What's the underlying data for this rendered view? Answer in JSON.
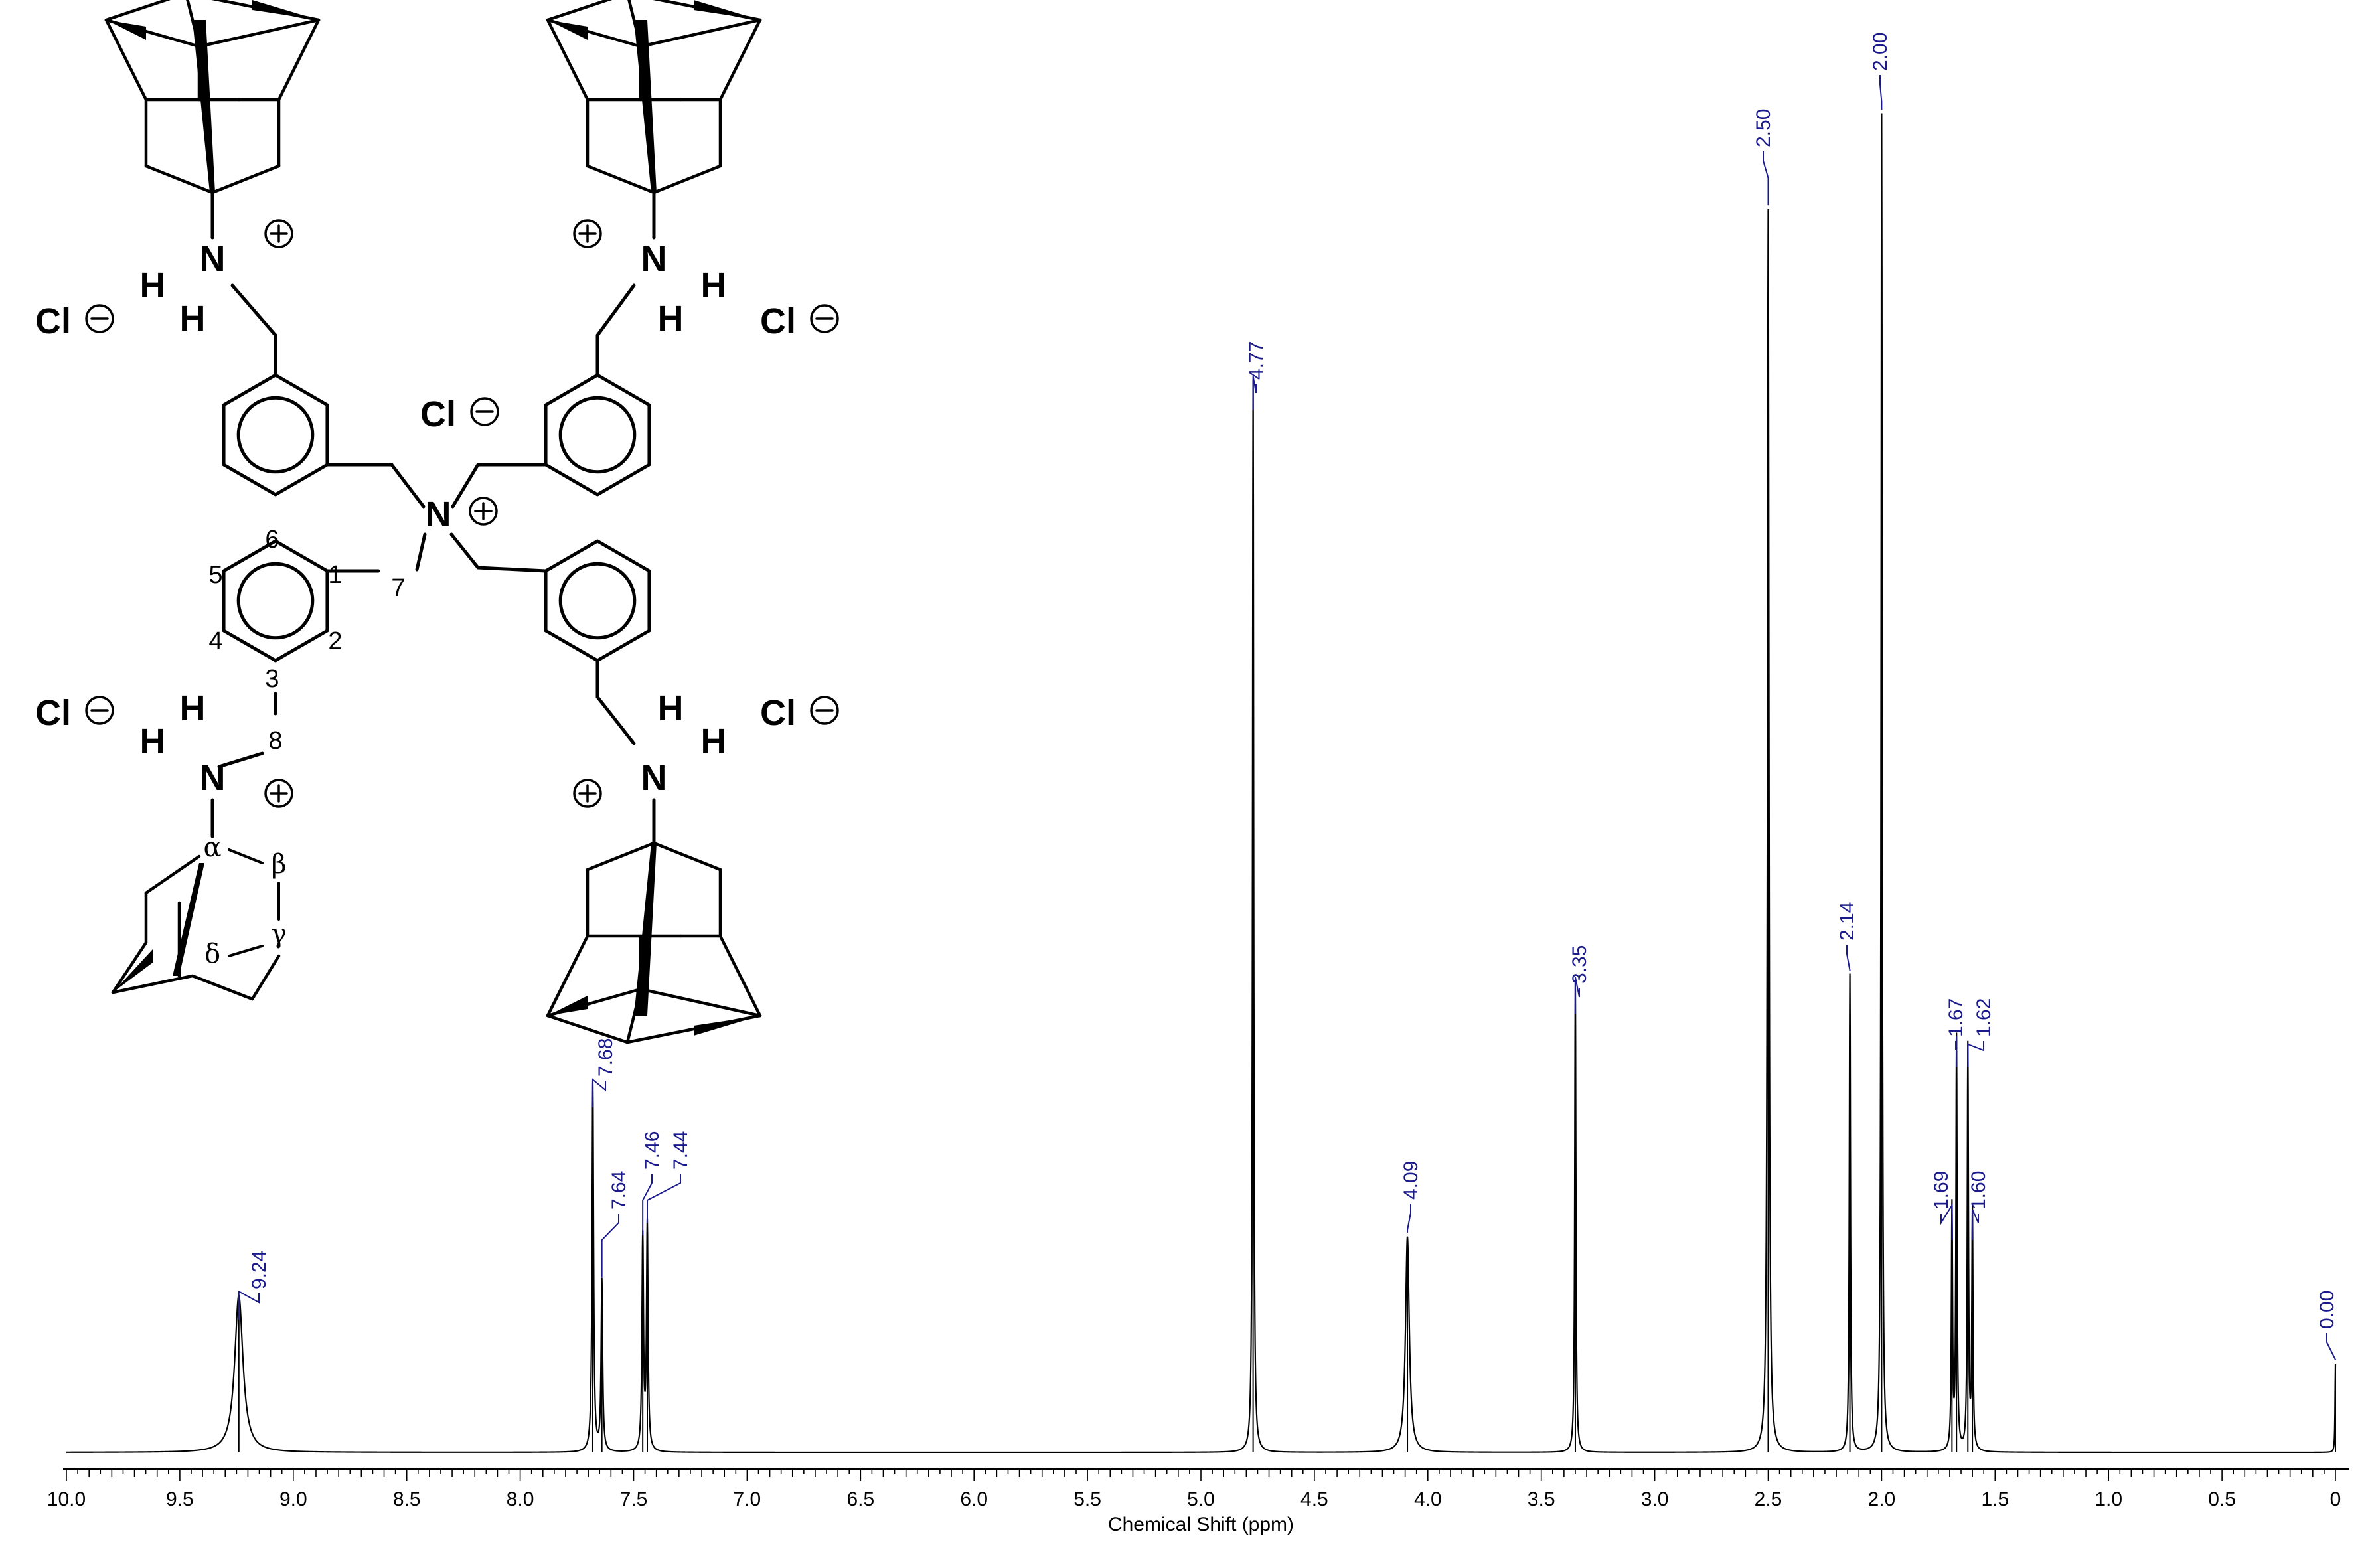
{
  "chart_data": {
    "type": "line",
    "title": "",
    "xlabel": "Chemical Shift (ppm)",
    "ylabel": "",
    "xlim": [
      10.0,
      0.0
    ],
    "x_reversed": true,
    "grid": false,
    "legend": "none",
    "x_ticks": [
      10.0,
      9.5,
      9.0,
      8.5,
      8.0,
      7.5,
      7.0,
      6.5,
      6.0,
      5.5,
      5.0,
      4.5,
      4.0,
      3.5,
      3.0,
      2.5,
      2.0,
      1.5,
      1.0,
      0.5,
      0
    ],
    "x_tick_labels": [
      "10.0",
      "9.5",
      "9.0",
      "8.5",
      "8.0",
      "7.5",
      "7.0",
      "6.5",
      "6.0",
      "5.5",
      "5.0",
      "4.5",
      "4.0",
      "3.5",
      "3.0",
      "2.5",
      "2.0",
      "1.5",
      "1.0",
      "0.5",
      "0"
    ],
    "peaks": [
      {
        "x": 9.24,
        "height": 0.115,
        "width": 0.022
      },
      {
        "x": 7.68,
        "height": 0.27,
        "width": 0.004
      },
      {
        "x": 7.64,
        "height": 0.125,
        "width": 0.004
      },
      {
        "x": 7.46,
        "height": 0.156,
        "width": 0.004
      },
      {
        "x": 7.44,
        "height": 0.165,
        "width": 0.004
      },
      {
        "x": 4.77,
        "height": 0.785,
        "width": 0.003
      },
      {
        "x": 4.09,
        "height": 0.158,
        "width": 0.01
      },
      {
        "x": 3.35,
        "height": 0.345,
        "width": 0.003
      },
      {
        "x": 2.5,
        "height": 0.91,
        "width": 0.004
      },
      {
        "x": 2.14,
        "height": 0.35,
        "width": 0.003
      },
      {
        "x": 2.0,
        "height": 0.98,
        "width": 0.003
      },
      {
        "x": 1.69,
        "height": 0.178,
        "width": 0.003
      },
      {
        "x": 1.67,
        "height": 0.302,
        "width": 0.003
      },
      {
        "x": 1.62,
        "height": 0.296,
        "width": 0.003
      },
      {
        "x": 1.6,
        "height": 0.175,
        "width": 0.003
      },
      {
        "x": 0.0,
        "height": 0.065,
        "width": 0.002
      }
    ],
    "peak_labels": [
      "9.24",
      "7.68",
      "7.64",
      "7.46",
      "7.44",
      "4.77",
      "4.09",
      "3.35",
      "2.50",
      "2.14",
      "2.00",
      "1.69",
      "1.67",
      "1.62",
      "1.60",
      "0.00"
    ]
  },
  "structure": {
    "atom_N": "N",
    "atom_H": "H",
    "atom_Cl": "Cl",
    "numbers": [
      "1",
      "2",
      "3",
      "4",
      "5",
      "6",
      "7",
      "8"
    ],
    "greek": [
      "α",
      "β",
      "γ",
      "δ"
    ]
  },
  "colors": {
    "spectrum": "#000000",
    "peak_label": "#1a1a8c",
    "axis": "#000000"
  }
}
